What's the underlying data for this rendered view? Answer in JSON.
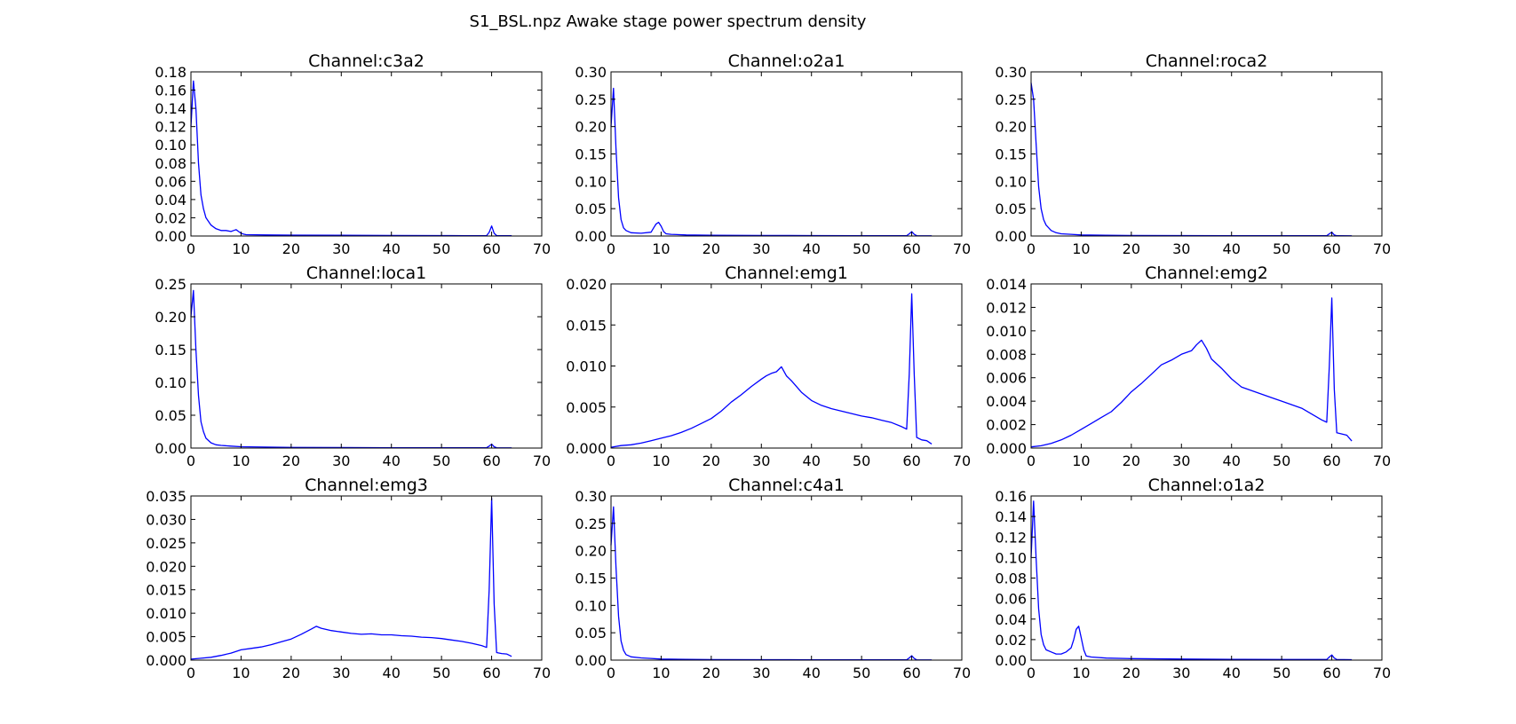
{
  "figure": {
    "title": "S1_BSL.npz Awake stage power spectrum density",
    "line_color": "#0000ff"
  },
  "chart_data": [
    {
      "type": "line",
      "title": "Channel:c3a2",
      "xlim": [
        0,
        70
      ],
      "ylim": [
        0,
        0.18
      ],
      "xticks": [
        "0",
        "10",
        "20",
        "30",
        "40",
        "50",
        "60",
        "70"
      ],
      "yticks": [
        "0.00",
        "0.02",
        "0.04",
        "0.06",
        "0.08",
        "0.10",
        "0.12",
        "0.14",
        "0.16",
        "0.18"
      ],
      "series": [
        {
          "x": [
            0,
            0.5,
            1,
            1.5,
            2,
            2.5,
            3,
            4,
            5,
            6,
            7,
            8,
            8.5,
            9,
            9.5,
            10,
            10.5,
            11,
            15,
            20,
            30,
            40,
            50,
            55,
            59,
            59.5,
            60,
            60.5,
            61,
            64
          ],
          "y": [
            0.12,
            0.17,
            0.14,
            0.08,
            0.045,
            0.03,
            0.02,
            0.012,
            0.008,
            0.006,
            0.006,
            0.005,
            0.006,
            0.007,
            0.005,
            0.003,
            0.002,
            0.0015,
            0.0012,
            0.001,
            0.0008,
            0.0006,
            0.0005,
            0.0004,
            0.0005,
            0.004,
            0.011,
            0.003,
            0.0005,
            0.0003
          ]
        }
      ]
    },
    {
      "type": "line",
      "title": "Channel:o2a1",
      "xlim": [
        0,
        70
      ],
      "ylim": [
        0,
        0.3
      ],
      "xticks": [
        "0",
        "10",
        "20",
        "30",
        "40",
        "50",
        "60",
        "70"
      ],
      "yticks": [
        "0.00",
        "0.05",
        "0.10",
        "0.15",
        "0.20",
        "0.25",
        "0.30"
      ],
      "series": [
        {
          "x": [
            0,
            0.5,
            1,
            1.5,
            2,
            2.5,
            3,
            4,
            6,
            8,
            8.5,
            9,
            9.5,
            10,
            10.5,
            11,
            12,
            15,
            20,
            30,
            40,
            50,
            59,
            59.5,
            60,
            60.5,
            61,
            64
          ],
          "y": [
            0.2,
            0.27,
            0.16,
            0.07,
            0.03,
            0.015,
            0.01,
            0.006,
            0.005,
            0.007,
            0.015,
            0.022,
            0.025,
            0.018,
            0.008,
            0.004,
            0.003,
            0.002,
            0.0015,
            0.001,
            0.0008,
            0.0006,
            0.0006,
            0.004,
            0.008,
            0.003,
            0.0006,
            0.0004
          ]
        }
      ]
    },
    {
      "type": "line",
      "title": "Channel:roca2",
      "xlim": [
        0,
        70
      ],
      "ylim": [
        0,
        0.3
      ],
      "xticks": [
        "0",
        "10",
        "20",
        "30",
        "40",
        "50",
        "60",
        "70"
      ],
      "yticks": [
        "0.00",
        "0.05",
        "0.10",
        "0.15",
        "0.20",
        "0.25",
        "0.30"
      ],
      "series": [
        {
          "x": [
            0,
            0.5,
            1,
            1.5,
            2,
            2.5,
            3,
            4,
            5,
            6,
            8,
            10,
            15,
            20,
            30,
            40,
            50,
            59,
            59.5,
            60,
            60.5,
            61,
            64
          ],
          "y": [
            0.28,
            0.25,
            0.17,
            0.09,
            0.05,
            0.03,
            0.02,
            0.01,
            0.006,
            0.004,
            0.003,
            0.002,
            0.0015,
            0.001,
            0.0008,
            0.0006,
            0.0005,
            0.0005,
            0.004,
            0.007,
            0.002,
            0.0005,
            0.0003
          ]
        }
      ]
    },
    {
      "type": "line",
      "title": "Channel:loca1",
      "xlim": [
        0,
        70
      ],
      "ylim": [
        0,
        0.25
      ],
      "xticks": [
        "0",
        "10",
        "20",
        "30",
        "40",
        "50",
        "60",
        "70"
      ],
      "yticks": [
        "0.00",
        "0.05",
        "0.10",
        "0.15",
        "0.20",
        "0.25"
      ],
      "series": [
        {
          "x": [
            0,
            0.5,
            1,
            1.5,
            2,
            2.5,
            3,
            4,
            5,
            6,
            8,
            10,
            15,
            20,
            30,
            40,
            50,
            59,
            59.5,
            60,
            60.5,
            61,
            64
          ],
          "y": [
            0.2,
            0.24,
            0.15,
            0.08,
            0.04,
            0.025,
            0.015,
            0.008,
            0.005,
            0.004,
            0.003,
            0.002,
            0.0015,
            0.001,
            0.0008,
            0.0006,
            0.0005,
            0.0005,
            0.003,
            0.006,
            0.002,
            0.0005,
            0.0003
          ]
        }
      ]
    },
    {
      "type": "line",
      "title": "Channel:emg1",
      "xlim": [
        0,
        70
      ],
      "ylim": [
        0,
        0.02
      ],
      "xticks": [
        "0",
        "10",
        "20",
        "30",
        "40",
        "50",
        "60",
        "70"
      ],
      "yticks": [
        "0.000",
        "0.005",
        "0.010",
        "0.015",
        "0.020"
      ],
      "series": [
        {
          "x": [
            0,
            2,
            4,
            6,
            8,
            10,
            12,
            14,
            16,
            18,
            20,
            22,
            24,
            26,
            28,
            30,
            31,
            32,
            33,
            34,
            35,
            36,
            38,
            40,
            42,
            44,
            46,
            48,
            50,
            52,
            54,
            56,
            58,
            59,
            59.5,
            60,
            60.5,
            61,
            62,
            63,
            64
          ],
          "y": [
            0.0001,
            0.0003,
            0.0004,
            0.0006,
            0.0009,
            0.0012,
            0.0015,
            0.0019,
            0.0024,
            0.003,
            0.0036,
            0.0045,
            0.0056,
            0.0065,
            0.0075,
            0.0084,
            0.0088,
            0.0091,
            0.0093,
            0.0099,
            0.0088,
            0.0082,
            0.0068,
            0.0058,
            0.0052,
            0.0048,
            0.0045,
            0.0042,
            0.0039,
            0.0037,
            0.0034,
            0.0031,
            0.0026,
            0.0023,
            0.009,
            0.0188,
            0.009,
            0.0013,
            0.001,
            0.0009,
            0.0005
          ]
        }
      ]
    },
    {
      "type": "line",
      "title": "Channel:emg2",
      "xlim": [
        0,
        70
      ],
      "ylim": [
        0,
        0.014
      ],
      "xticks": [
        "0",
        "10",
        "20",
        "30",
        "40",
        "50",
        "60",
        "70"
      ],
      "yticks": [
        "0.000",
        "0.002",
        "0.004",
        "0.006",
        "0.008",
        "0.010",
        "0.012",
        "0.014"
      ],
      "series": [
        {
          "x": [
            0,
            2,
            4,
            6,
            8,
            10,
            12,
            14,
            16,
            18,
            20,
            22,
            24,
            26,
            28,
            30,
            32,
            33,
            34,
            35,
            36,
            38,
            40,
            42,
            44,
            46,
            48,
            50,
            52,
            54,
            56,
            58,
            59,
            59.5,
            60,
            60.5,
            61,
            62,
            63,
            64
          ],
          "y": [
            0.0001,
            0.0002,
            0.0004,
            0.0007,
            0.0011,
            0.0016,
            0.0021,
            0.0026,
            0.0031,
            0.0039,
            0.0048,
            0.0055,
            0.0063,
            0.0071,
            0.0075,
            0.008,
            0.0083,
            0.0088,
            0.0092,
            0.0085,
            0.0076,
            0.0068,
            0.0059,
            0.0052,
            0.0049,
            0.0046,
            0.0043,
            0.004,
            0.0037,
            0.0034,
            0.0029,
            0.0024,
            0.0022,
            0.007,
            0.0128,
            0.005,
            0.0013,
            0.0012,
            0.0011,
            0.0006
          ]
        }
      ]
    },
    {
      "type": "line",
      "title": "Channel:emg3",
      "xlim": [
        0,
        70
      ],
      "ylim": [
        0,
        0.035
      ],
      "xticks": [
        "0",
        "10",
        "20",
        "30",
        "40",
        "50",
        "60",
        "70"
      ],
      "yticks": [
        "0.000",
        "0.005",
        "0.010",
        "0.015",
        "0.020",
        "0.025",
        "0.030",
        "0.035"
      ],
      "series": [
        {
          "x": [
            0,
            2,
            4,
            6,
            8,
            10,
            12,
            14,
            16,
            18,
            20,
            22,
            24,
            25,
            26,
            28,
            30,
            32,
            34,
            36,
            38,
            40,
            42,
            44,
            46,
            48,
            50,
            52,
            54,
            56,
            58,
            59,
            59.5,
            60,
            60.5,
            61,
            62,
            63,
            64
          ],
          "y": [
            0.0002,
            0.0004,
            0.0006,
            0.001,
            0.0015,
            0.0022,
            0.0025,
            0.0028,
            0.0033,
            0.0039,
            0.0045,
            0.0055,
            0.0066,
            0.0072,
            0.0068,
            0.0063,
            0.006,
            0.0057,
            0.0055,
            0.0056,
            0.0054,
            0.0054,
            0.0052,
            0.0051,
            0.0049,
            0.0048,
            0.0046,
            0.0043,
            0.004,
            0.0036,
            0.0031,
            0.0027,
            0.015,
            0.0345,
            0.012,
            0.0016,
            0.0014,
            0.0013,
            0.0008
          ]
        }
      ]
    },
    {
      "type": "line",
      "title": "Channel:c4a1",
      "xlim": [
        0,
        70
      ],
      "ylim": [
        0,
        0.3
      ],
      "xticks": [
        "0",
        "10",
        "20",
        "30",
        "40",
        "50",
        "60",
        "70"
      ],
      "yticks": [
        "0.00",
        "0.05",
        "0.10",
        "0.15",
        "0.20",
        "0.25",
        "0.30"
      ],
      "series": [
        {
          "x": [
            0,
            0.5,
            1,
            1.5,
            2,
            2.5,
            3,
            4,
            6,
            8,
            10,
            15,
            20,
            30,
            40,
            50,
            59,
            59.5,
            60,
            60.5,
            61,
            64
          ],
          "y": [
            0.21,
            0.28,
            0.17,
            0.08,
            0.035,
            0.018,
            0.01,
            0.006,
            0.004,
            0.003,
            0.002,
            0.0015,
            0.001,
            0.0008,
            0.0006,
            0.0005,
            0.0005,
            0.004,
            0.008,
            0.003,
            0.0005,
            0.0003
          ]
        }
      ]
    },
    {
      "type": "line",
      "title": "Channel:o1a2",
      "xlim": [
        0,
        70
      ],
      "ylim": [
        0,
        0.16
      ],
      "xticks": [
        "0",
        "10",
        "20",
        "30",
        "40",
        "50",
        "60",
        "70"
      ],
      "yticks": [
        "0.00",
        "0.02",
        "0.04",
        "0.06",
        "0.08",
        "0.10",
        "0.12",
        "0.14",
        "0.16"
      ],
      "series": [
        {
          "x": [
            0,
            0.5,
            1,
            1.5,
            2,
            2.5,
            3,
            4,
            5,
            6,
            7,
            8,
            8.5,
            9,
            9.5,
            10,
            10.5,
            11,
            12,
            15,
            20,
            30,
            40,
            50,
            59,
            59.5,
            60,
            60.5,
            61,
            64
          ],
          "y": [
            0.1,
            0.155,
            0.1,
            0.05,
            0.025,
            0.015,
            0.01,
            0.008,
            0.006,
            0.006,
            0.008,
            0.012,
            0.02,
            0.03,
            0.033,
            0.022,
            0.01,
            0.004,
            0.003,
            0.002,
            0.0015,
            0.001,
            0.0008,
            0.0006,
            0.0006,
            0.003,
            0.005,
            0.002,
            0.0006,
            0.0004
          ]
        }
      ]
    }
  ]
}
